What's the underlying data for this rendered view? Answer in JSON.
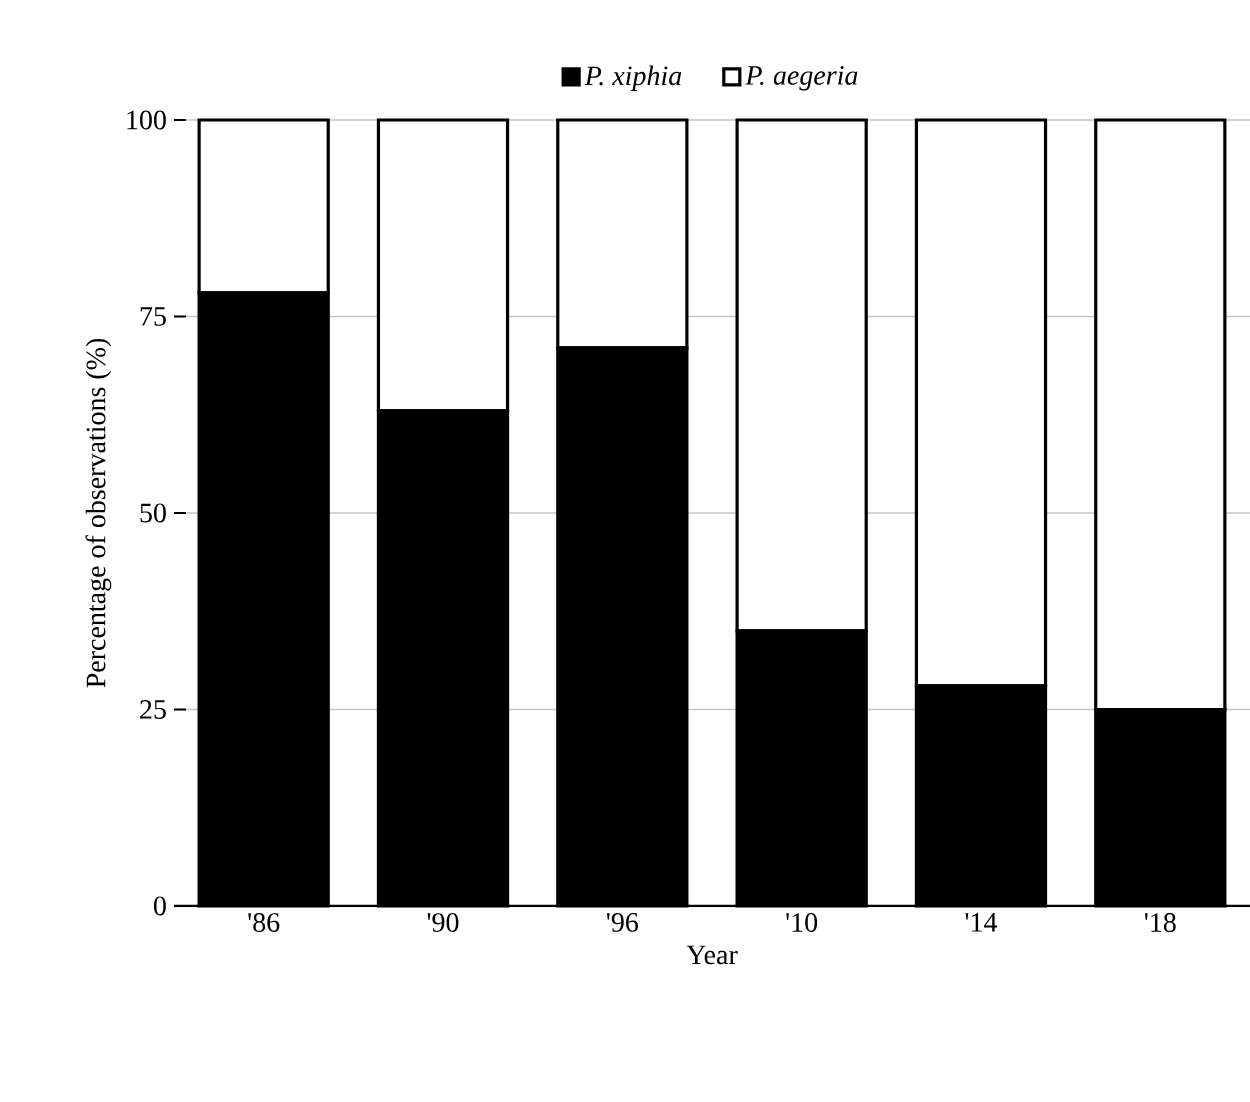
{
  "chart_data": {
    "type": "bar",
    "stacked": true,
    "xlabel": "Year",
    "ylabel": "Percentage of observations (%)",
    "categories": [
      "'86",
      "'90",
      "'96",
      "'10",
      "'14",
      "'18"
    ],
    "series": [
      {
        "name": "P. xiphia",
        "color": "#000000",
        "values": [
          78,
          63,
          71,
          35,
          28,
          25
        ]
      },
      {
        "name": "P. aegeria",
        "color": "#ffffff",
        "values": [
          22,
          37,
          29,
          65,
          72,
          75
        ]
      }
    ],
    "ylim": [
      0,
      100
    ],
    "yticks": [
      0,
      25,
      50,
      75,
      100
    ],
    "grid": "y",
    "legend": "top"
  }
}
